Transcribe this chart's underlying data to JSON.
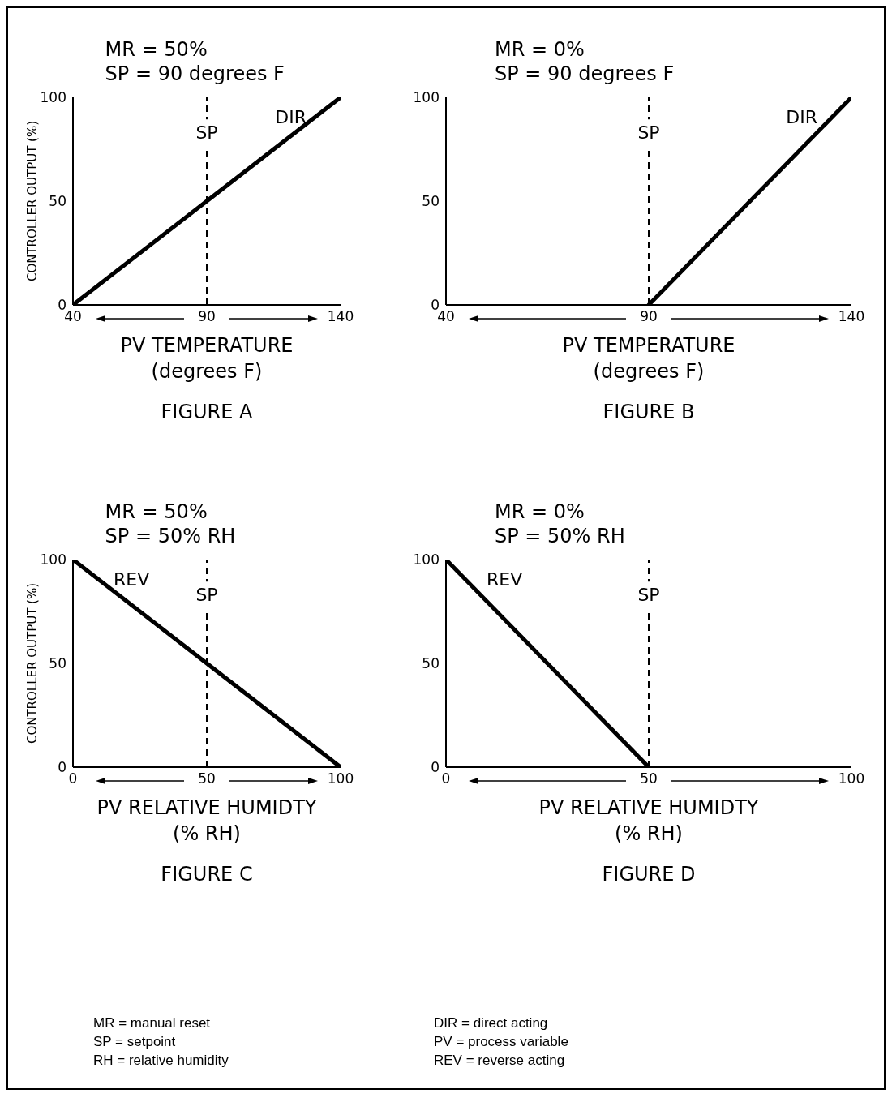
{
  "chart_data": [
    {
      "type": "line",
      "title": "MR = 50%",
      "subtitle": "SP = 90 degrees F",
      "xlabel": "PV TEMPERATURE\n(degrees F)",
      "ylabel": "CONTROLLER OUTPUT (%)",
      "annotations": [
        "FIGURE A"
      ],
      "xlim": [
        40,
        140
      ],
      "xticks": [
        40,
        90,
        140
      ],
      "ylim": [
        0,
        100
      ],
      "yticks": [
        0,
        50,
        100
      ],
      "series": [
        {
          "name": "DIR",
          "color": "#000000",
          "x": [
            40,
            140
          ],
          "values": [
            0,
            100
          ]
        }
      ],
      "ref_lines": [
        {
          "axis": "x",
          "value": 90,
          "label": "SP",
          "line_style": "dashed"
        }
      ]
    },
    {
      "type": "line",
      "title": "MR = 0%",
      "subtitle": "SP = 90 degrees F",
      "xlabel": "PV TEMPERATURE\n(degrees F)",
      "annotations": [
        "FIGURE B"
      ],
      "xlim": [
        40,
        140
      ],
      "xticks": [
        40,
        90,
        140
      ],
      "ylim": [
        0,
        100
      ],
      "yticks": [
        0,
        50,
        100
      ],
      "series": [
        {
          "name": "DIR",
          "color": "#000000",
          "x": [
            90,
            140
          ],
          "values": [
            0,
            100
          ]
        }
      ],
      "ref_lines": [
        {
          "axis": "x",
          "value": 90,
          "label": "SP",
          "line_style": "dashed"
        }
      ]
    },
    {
      "type": "line",
      "title": "MR = 50%",
      "subtitle": "SP = 50% RH",
      "xlabel": "PV RELATIVE HUMIDTY\n(% RH)",
      "ylabel": "CONTROLLER OUTPUT (%)",
      "annotations": [
        "FIGURE C"
      ],
      "xlim": [
        0,
        100
      ],
      "xticks": [
        0,
        50,
        100
      ],
      "ylim": [
        0,
        100
      ],
      "yticks": [
        0,
        50,
        100
      ],
      "series": [
        {
          "name": "REV",
          "color": "#000000",
          "x": [
            0,
            100
          ],
          "values": [
            100,
            0
          ]
        }
      ],
      "ref_lines": [
        {
          "axis": "x",
          "value": 50,
          "label": "SP",
          "line_style": "dashed"
        }
      ]
    },
    {
      "type": "line",
      "title": "MR = 0%",
      "subtitle": "SP = 50% RH",
      "xlabel": "PV RELATIVE HUMIDTY\n(% RH)",
      "annotations": [
        "FIGURE D"
      ],
      "xlim": [
        0,
        100
      ],
      "xticks": [
        0,
        50,
        100
      ],
      "ylim": [
        0,
        100
      ],
      "yticks": [
        0,
        50,
        100
      ],
      "series": [
        {
          "name": "REV",
          "color": "#000000",
          "x": [
            0,
            50
          ],
          "values": [
            100,
            0
          ]
        }
      ],
      "ref_lines": [
        {
          "axis": "x",
          "value": 50,
          "label": "SP",
          "line_style": "dashed"
        }
      ]
    },
    {
      "type": "other",
      "annotations": [
        "MR = manual reset",
        "SP = setpoint",
        "RH = relative humidity",
        "DIR = direct acting",
        "PV = process variable",
        "REV = reverse acting"
      ]
    }
  ]
}
